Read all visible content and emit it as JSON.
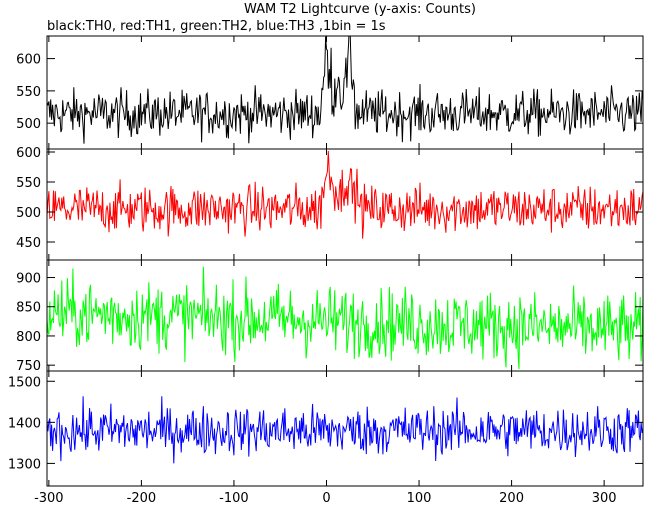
{
  "title": "WAM T2 Lightcurve (y-axis: Counts)",
  "subtitle": "black:TH0, red:TH1, green:TH2, blue:TH3 ,1bin = 1s",
  "chart_data": {
    "type": "line",
    "title": "WAM T2 Lightcurve (y-axis: Counts)",
    "subtitle": "black:TH0, red:TH1, green:TH2, blue:TH3 ,1bin = 1s",
    "xlabel": "",
    "ylabel": "Counts",
    "xlim": [
      -302,
      342
    ],
    "x_ticks": [
      -300,
      -200,
      -100,
      0,
      100,
      200,
      300
    ],
    "bin_size_s": 1,
    "panels": [
      {
        "name": "TH0",
        "color": "#000000",
        "ylim": [
          460,
          635
        ],
        "y_ticks": [
          500,
          550,
          600
        ],
        "baseline": 515,
        "noise": 18,
        "burst": [
          {
            "x_start": -5,
            "x_end": 5,
            "peak": 620
          },
          {
            "x_start": 5,
            "x_end": 20,
            "peak": 575
          },
          {
            "x_start": 20,
            "x_end": 30,
            "peak": 630
          }
        ]
      },
      {
        "name": "TH1",
        "color": "#ff0000",
        "ylim": [
          420,
          605
        ],
        "y_ticks": [
          450,
          500,
          550,
          600
        ],
        "baseline": 505,
        "noise": 20,
        "burst": [
          {
            "x_start": -5,
            "x_end": 10,
            "peak": 585
          },
          {
            "x_start": 10,
            "x_end": 35,
            "peak": 560
          }
        ]
      },
      {
        "name": "TH2",
        "color": "#00ff00",
        "ylim": [
          740,
          930
        ],
        "y_ticks": [
          750,
          800,
          850,
          900
        ],
        "baseline": 840,
        "noise": 30,
        "trend_end": 810,
        "burst": []
      },
      {
        "name": "TH3",
        "color": "#0000ff",
        "ylim": [
          1245,
          1525
        ],
        "y_ticks": [
          1300,
          1400,
          1500
        ],
        "baseline": 1380,
        "noise": 30,
        "burst": []
      }
    ]
  }
}
